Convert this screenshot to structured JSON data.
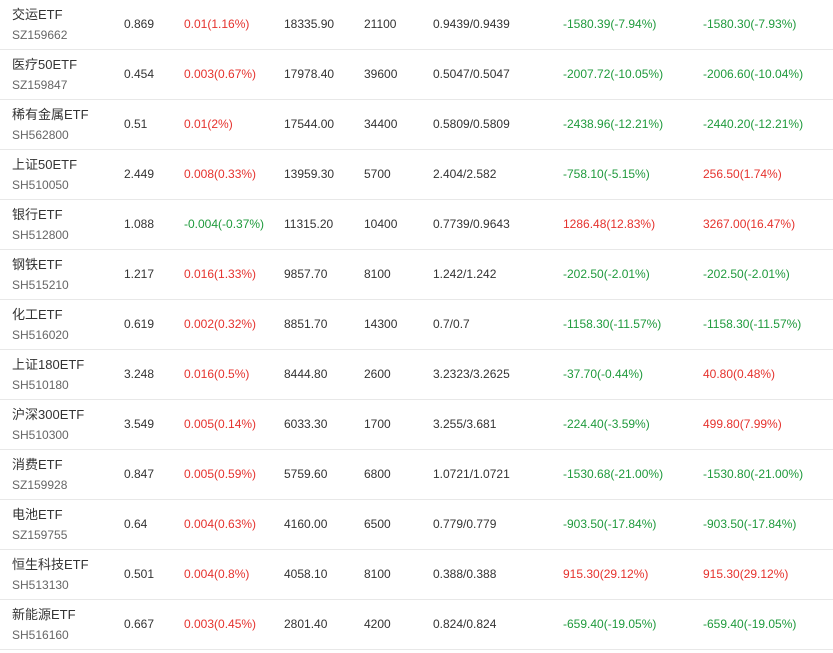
{
  "colors": {
    "up": "#e5322d",
    "down": "#1f9a3c",
    "text": "#333333",
    "code": "#666666"
  },
  "rows": [
    {
      "name": "交运ETF",
      "code": "SZ159662",
      "price": "0.869",
      "change": "0.01(1.16%)",
      "change_dir": "up",
      "volume": "18335.90",
      "shares": "21100",
      "nav": "0.9439/0.9439",
      "pl1": "-1580.39(-7.94%)",
      "pl1_dir": "down",
      "pl2": "-1580.30(-7.93%)",
      "pl2_dir": "down"
    },
    {
      "name": "医疗50ETF",
      "code": "SZ159847",
      "price": "0.454",
      "change": "0.003(0.67%)",
      "change_dir": "up",
      "volume": "17978.40",
      "shares": "39600",
      "nav": "0.5047/0.5047",
      "pl1": "-2007.72(-10.05%)",
      "pl1_dir": "down",
      "pl2": "-2006.60(-10.04%)",
      "pl2_dir": "down"
    },
    {
      "name": "稀有金属ETF",
      "code": "SH562800",
      "price": "0.51",
      "change": "0.01(2%)",
      "change_dir": "up",
      "volume": "17544.00",
      "shares": "34400",
      "nav": "0.5809/0.5809",
      "pl1": "-2438.96(-12.21%)",
      "pl1_dir": "down",
      "pl2": "-2440.20(-12.21%)",
      "pl2_dir": "down"
    },
    {
      "name": "上证50ETF",
      "code": "SH510050",
      "price": "2.449",
      "change": "0.008(0.33%)",
      "change_dir": "up",
      "volume": "13959.30",
      "shares": "5700",
      "nav": "2.404/2.582",
      "pl1": "-758.10(-5.15%)",
      "pl1_dir": "down",
      "pl2": "256.50(1.74%)",
      "pl2_dir": "up"
    },
    {
      "name": "银行ETF",
      "code": "SH512800",
      "price": "1.088",
      "change": "-0.004(-0.37%)",
      "change_dir": "down",
      "volume": "11315.20",
      "shares": "10400",
      "nav": "0.7739/0.9643",
      "pl1": "1286.48(12.83%)",
      "pl1_dir": "up",
      "pl2": "3267.00(16.47%)",
      "pl2_dir": "up"
    },
    {
      "name": "钢铁ETF",
      "code": "SH515210",
      "price": "1.217",
      "change": "0.016(1.33%)",
      "change_dir": "up",
      "volume": "9857.70",
      "shares": "8100",
      "nav": "1.242/1.242",
      "pl1": "-202.50(-2.01%)",
      "pl1_dir": "down",
      "pl2": "-202.50(-2.01%)",
      "pl2_dir": "down"
    },
    {
      "name": "化工ETF",
      "code": "SH516020",
      "price": "0.619",
      "change": "0.002(0.32%)",
      "change_dir": "up",
      "volume": "8851.70",
      "shares": "14300",
      "nav": "0.7/0.7",
      "pl1": "-1158.30(-11.57%)",
      "pl1_dir": "down",
      "pl2": "-1158.30(-11.57%)",
      "pl2_dir": "down"
    },
    {
      "name": "上证180ETF",
      "code": "SH510180",
      "price": "3.248",
      "change": "0.016(0.5%)",
      "change_dir": "up",
      "volume": "8444.80",
      "shares": "2600",
      "nav": "3.2323/3.2625",
      "pl1": "-37.70(-0.44%)",
      "pl1_dir": "down",
      "pl2": "40.80(0.48%)",
      "pl2_dir": "up"
    },
    {
      "name": "沪深300ETF",
      "code": "SH510300",
      "price": "3.549",
      "change": "0.005(0.14%)",
      "change_dir": "up",
      "volume": "6033.30",
      "shares": "1700",
      "nav": "3.255/3.681",
      "pl1": "-224.40(-3.59%)",
      "pl1_dir": "down",
      "pl2": "499.80(7.99%)",
      "pl2_dir": "up"
    },
    {
      "name": "消费ETF",
      "code": "SZ159928",
      "price": "0.847",
      "change": "0.005(0.59%)",
      "change_dir": "up",
      "volume": "5759.60",
      "shares": "6800",
      "nav": "1.0721/1.0721",
      "pl1": "-1530.68(-21.00%)",
      "pl1_dir": "down",
      "pl2": "-1530.80(-21.00%)",
      "pl2_dir": "down"
    },
    {
      "name": "电池ETF",
      "code": "SZ159755",
      "price": "0.64",
      "change": "0.004(0.63%)",
      "change_dir": "up",
      "volume": "4160.00",
      "shares": "6500",
      "nav": "0.779/0.779",
      "pl1": "-903.50(-17.84%)",
      "pl1_dir": "down",
      "pl2": "-903.50(-17.84%)",
      "pl2_dir": "down"
    },
    {
      "name": "恒生科技ETF",
      "code": "SH513130",
      "price": "0.501",
      "change": "0.004(0.8%)",
      "change_dir": "up",
      "volume": "4058.10",
      "shares": "8100",
      "nav": "0.388/0.388",
      "pl1": "915.30(29.12%)",
      "pl1_dir": "up",
      "pl2": "915.30(29.12%)",
      "pl2_dir": "up"
    },
    {
      "name": "新能源ETF",
      "code": "SH516160",
      "price": "0.667",
      "change": "0.003(0.45%)",
      "change_dir": "up",
      "volume": "2801.40",
      "shares": "4200",
      "nav": "0.824/0.824",
      "pl1": "-659.40(-19.05%)",
      "pl1_dir": "down",
      "pl2": "-659.40(-19.05%)",
      "pl2_dir": "down"
    }
  ]
}
